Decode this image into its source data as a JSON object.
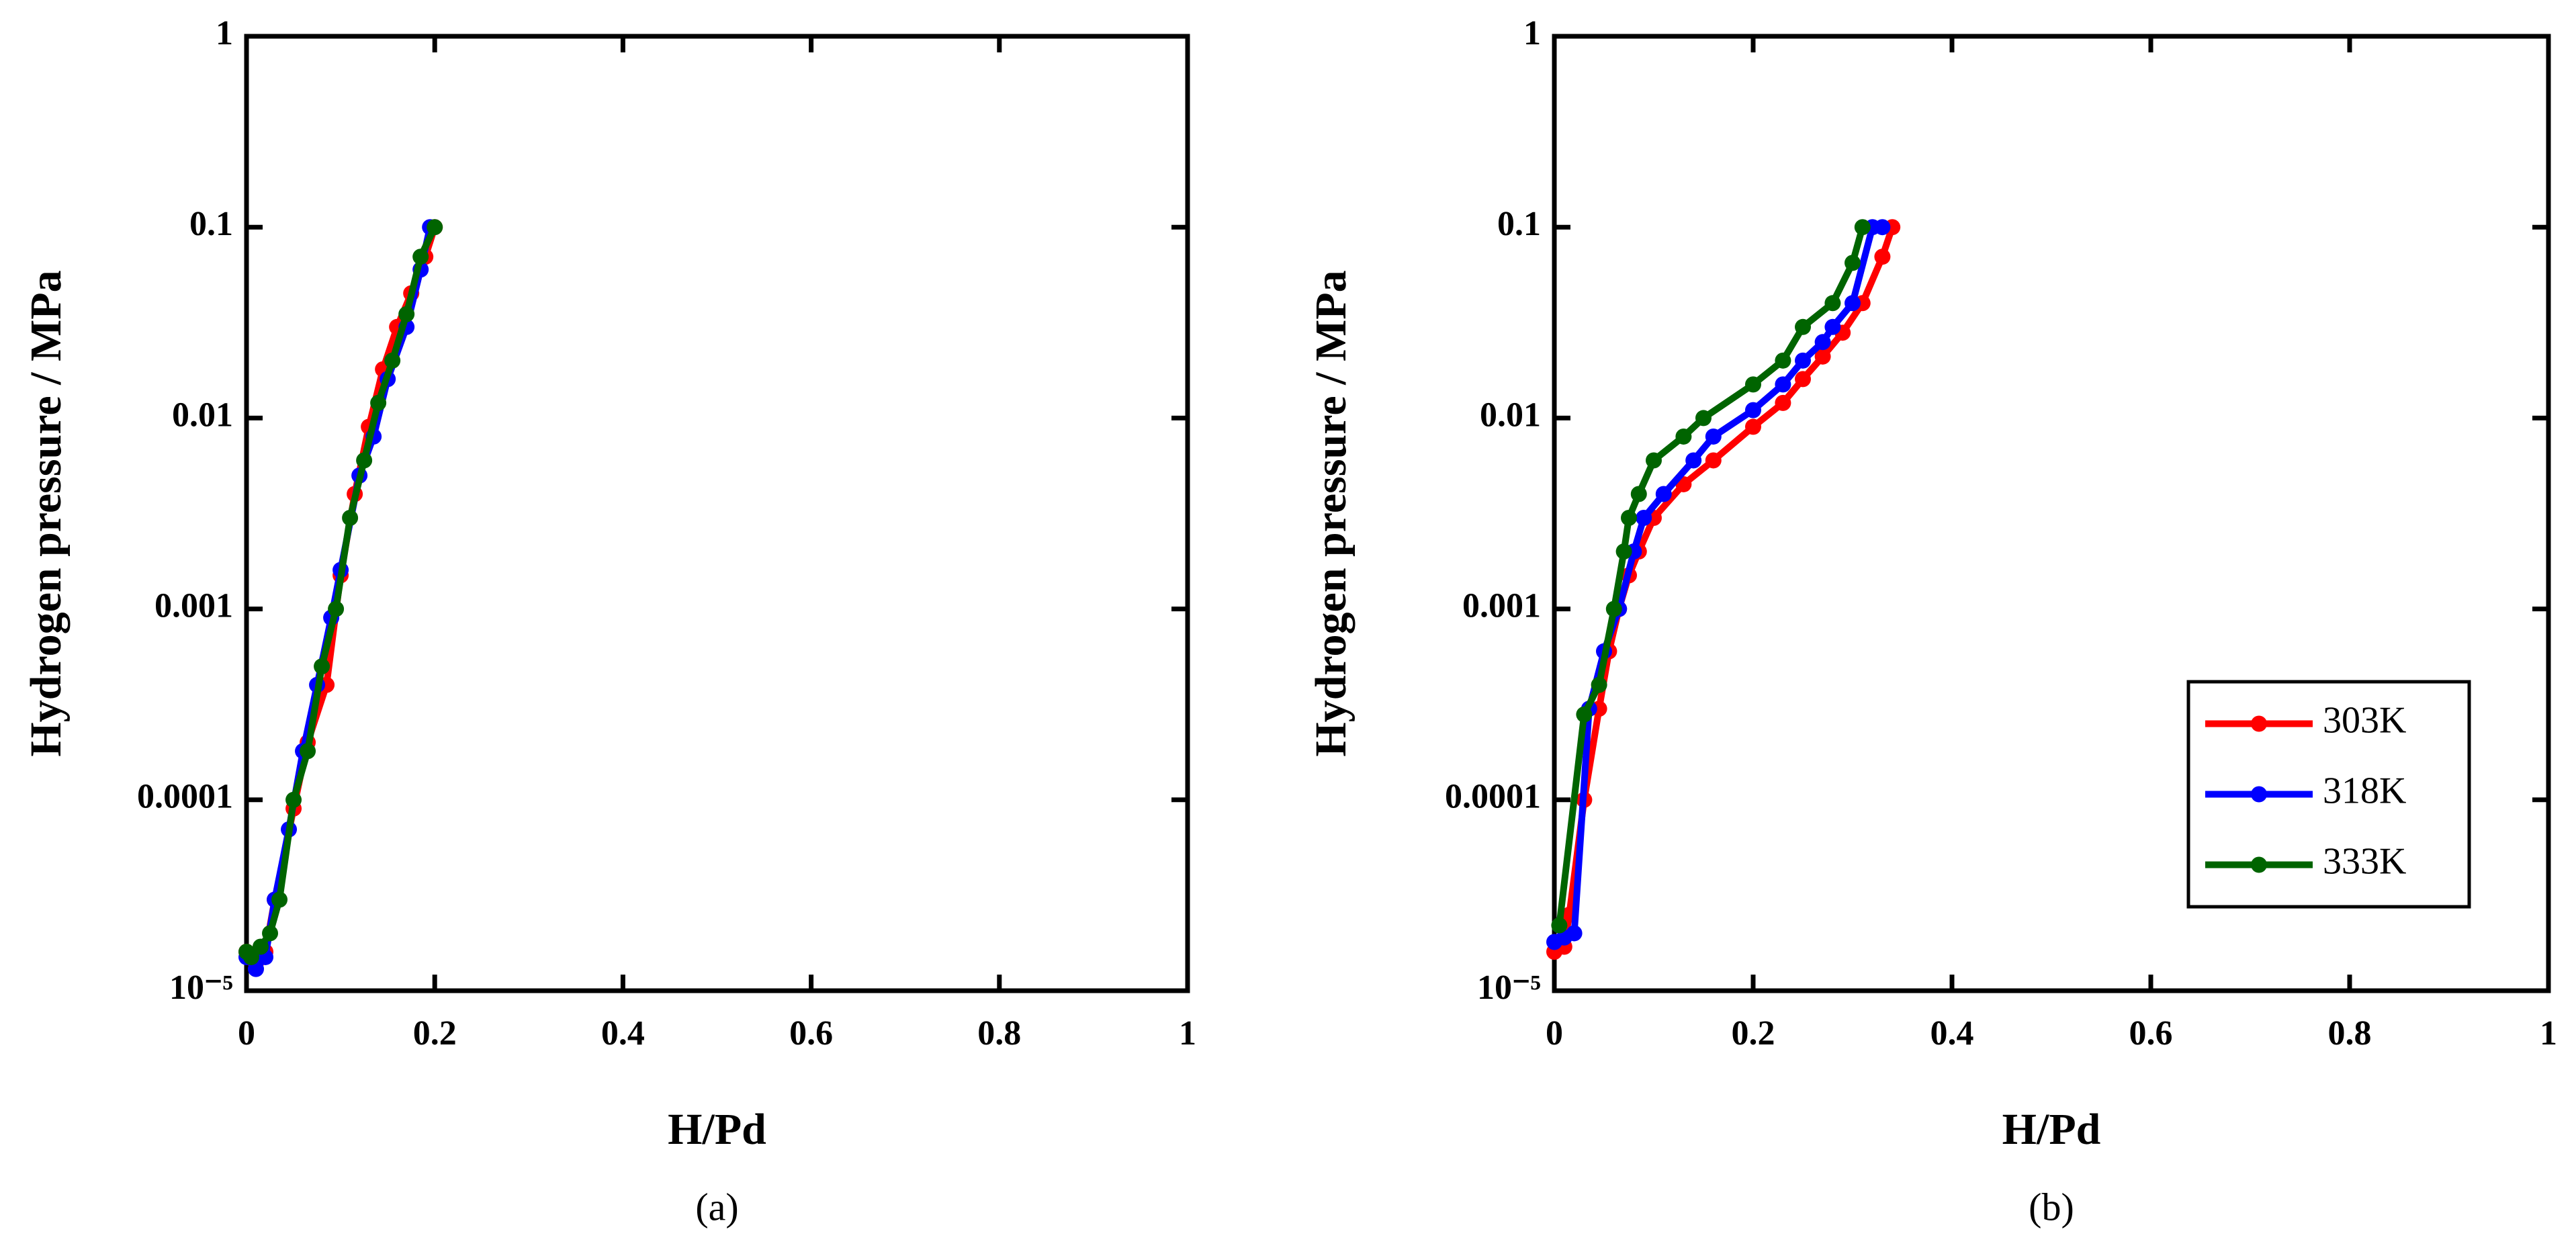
{
  "chart_data": [
    {
      "type": "line",
      "caption": "(a)",
      "xlabel": "H/Pd",
      "ylabel": "Hydrogen pressure / MPa",
      "xlim": [
        0,
        1
      ],
      "ylim": [
        1e-05,
        1
      ],
      "yscale": "log",
      "xticks": [
        0,
        0.2,
        0.4,
        0.6,
        0.8,
        1
      ],
      "yticks": [
        {
          "value": 1e-05,
          "label": "10⁻⁵"
        },
        0.0001,
        0.001,
        0.01,
        0.1,
        1
      ],
      "series": [
        {
          "color": "#ff0000",
          "x": [
            0,
            0.01,
            0.02,
            0.03,
            0.05,
            0.065,
            0.085,
            0.1,
            0.115,
            0.13,
            0.145,
            0.16,
            0.175,
            0.19,
            0.2
          ],
          "values": [
            1.6e-05,
            1.4e-05,
            1.6e-05,
            3e-05,
            9e-05,
            0.0002,
            0.0004,
            0.0015,
            0.004,
            0.009,
            0.018,
            0.03,
            0.045,
            0.07,
            0.1
          ]
        },
        {
          "color": "#0000ff",
          "x": [
            0,
            0.01,
            0.02,
            0.03,
            0.045,
            0.06,
            0.075,
            0.09,
            0.1,
            0.12,
            0.135,
            0.15,
            0.17,
            0.185,
            0.195
          ],
          "values": [
            1.5e-05,
            1.3e-05,
            1.5e-05,
            3e-05,
            7e-05,
            0.00018,
            0.0004,
            0.0009,
            0.0016,
            0.005,
            0.008,
            0.016,
            0.03,
            0.06,
            0.1
          ]
        },
        {
          "color": "#006400",
          "x": [
            0,
            0.005,
            0.015,
            0.025,
            0.035,
            0.05,
            0.065,
            0.08,
            0.095,
            0.11,
            0.125,
            0.14,
            0.155,
            0.17,
            0.185,
            0.2
          ],
          "values": [
            1.6e-05,
            1.5e-05,
            1.7e-05,
            2e-05,
            3e-05,
            0.0001,
            0.00018,
            0.0005,
            0.001,
            0.003,
            0.006,
            0.012,
            0.02,
            0.035,
            0.07,
            0.1
          ]
        }
      ]
    },
    {
      "type": "line",
      "caption": "(b)",
      "xlabel": "H/Pd",
      "ylabel": "Hydrogen pressure / MPa",
      "xlim": [
        0,
        1
      ],
      "ylim": [
        1e-05,
        1
      ],
      "yscale": "log",
      "xticks": [
        0,
        0.2,
        0.4,
        0.6,
        0.8,
        1
      ],
      "yticks": [
        {
          "value": 1e-05,
          "label": "10⁻⁵"
        },
        0.0001,
        0.001,
        0.01,
        0.1,
        1
      ],
      "legend_position": "lower right",
      "series": [
        {
          "name": "303K",
          "color": "#ff0000",
          "x": [
            0,
            0.01,
            0.015,
            0.03,
            0.045,
            0.055,
            0.065,
            0.075,
            0.085,
            0.1,
            0.13,
            0.16,
            0.2,
            0.23,
            0.25,
            0.27,
            0.29,
            0.31,
            0.33,
            0.34
          ],
          "values": [
            1.6e-05,
            1.7e-05,
            2.5e-05,
            0.0001,
            0.0003,
            0.0006,
            0.001,
            0.0015,
            0.002,
            0.003,
            0.0045,
            0.006,
            0.009,
            0.012,
            0.016,
            0.021,
            0.028,
            0.04,
            0.07,
            0.1
          ]
        },
        {
          "name": "318K",
          "color": "#0000ff",
          "x": [
            0,
            0.01,
            0.02,
            0.035,
            0.05,
            0.065,
            0.08,
            0.09,
            0.11,
            0.14,
            0.16,
            0.2,
            0.23,
            0.25,
            0.27,
            0.28,
            0.3,
            0.32,
            0.33
          ],
          "values": [
            1.8e-05,
            1.9e-05,
            2e-05,
            0.0003,
            0.0006,
            0.001,
            0.002,
            0.003,
            0.004,
            0.006,
            0.008,
            0.011,
            0.015,
            0.02,
            0.025,
            0.03,
            0.04,
            0.1,
            0.1
          ]
        },
        {
          "name": "333K",
          "color": "#006400",
          "x": [
            0.005,
            0.03,
            0.045,
            0.06,
            0.07,
            0.075,
            0.085,
            0.1,
            0.13,
            0.15,
            0.2,
            0.23,
            0.25,
            0.28,
            0.3,
            0.31
          ],
          "values": [
            2.2e-05,
            0.00028,
            0.0004,
            0.001,
            0.002,
            0.003,
            0.004,
            0.006,
            0.008,
            0.01,
            0.015,
            0.02,
            0.03,
            0.04,
            0.065,
            0.1
          ]
        }
      ]
    }
  ]
}
